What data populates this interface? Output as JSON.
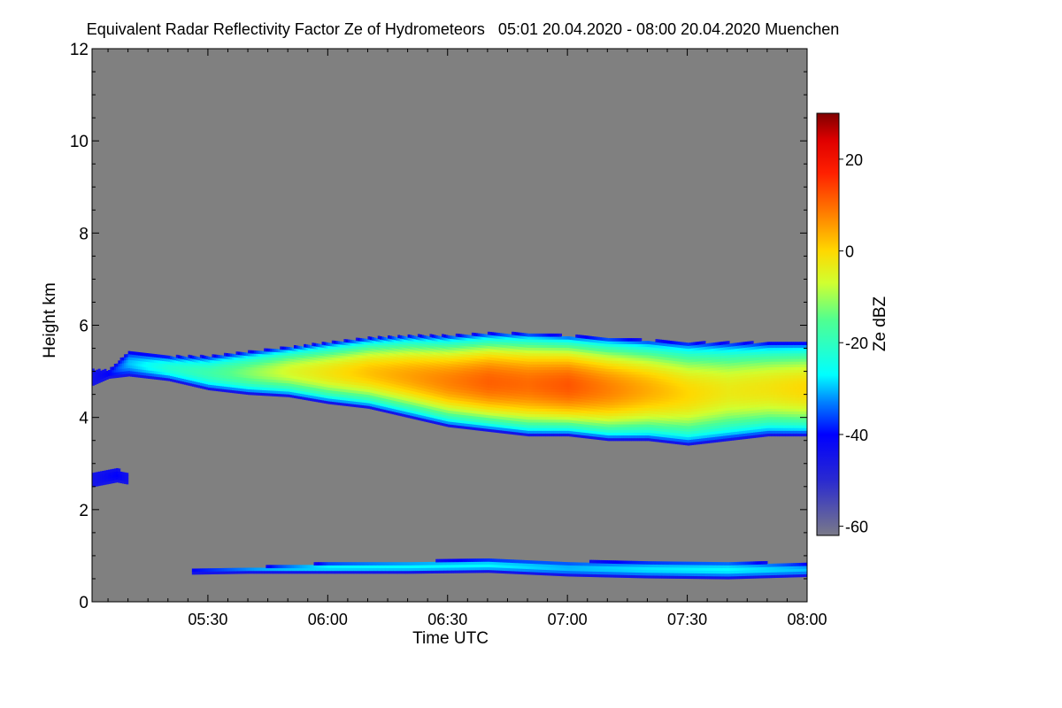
{
  "chart_data": {
    "type": "heatmap",
    "title": "Equivalent Radar Reflectivity Factor Ze of Hydrometeors   05:01 20.04.2020 - 08:00 20.04.2020 Muenchen",
    "xlabel": "Time UTC",
    "ylabel": "Height km",
    "xlim_minutes_utc": [
      301,
      480
    ],
    "ylim": [
      0,
      12
    ],
    "x_ticks": [
      {
        "minute": 330,
        "label": "05:30"
      },
      {
        "minute": 360,
        "label": "06:00"
      },
      {
        "minute": 390,
        "label": "06:30"
      },
      {
        "minute": 420,
        "label": "07:00"
      },
      {
        "minute": 450,
        "label": "07:30"
      },
      {
        "minute": 480,
        "label": "08:00"
      }
    ],
    "y_ticks": [
      {
        "value": 0,
        "label": "0"
      },
      {
        "value": 2,
        "label": "2"
      },
      {
        "value": 4,
        "label": "4"
      },
      {
        "value": 6,
        "label": "6"
      },
      {
        "value": 8,
        "label": "8"
      },
      {
        "value": 10,
        "label": "10"
      },
      {
        "value": 12,
        "label": "12"
      }
    ],
    "background_color": "#808080",
    "colorbar": {
      "label": "Ze dBZ",
      "range": [
        -62,
        30
      ],
      "ticks": [
        {
          "value": -60,
          "label": "-60"
        },
        {
          "value": -40,
          "label": "-40"
        },
        {
          "value": -20,
          "label": "-20"
        },
        {
          "value": 0,
          "label": "0"
        },
        {
          "value": 20,
          "label": "20"
        }
      ],
      "colormap": [
        {
          "v": -62,
          "color": "#7a7a88"
        },
        {
          "v": -50,
          "color": "#2a2ad0"
        },
        {
          "v": -40,
          "color": "#0000ff"
        },
        {
          "v": -33,
          "color": "#0080ff"
        },
        {
          "v": -27,
          "color": "#00ffff"
        },
        {
          "v": -15,
          "color": "#50ff90"
        },
        {
          "v": -7,
          "color": "#d0ff30"
        },
        {
          "v": 0,
          "color": "#ffd800"
        },
        {
          "v": 8,
          "color": "#ff8000"
        },
        {
          "v": 17,
          "color": "#ff2000"
        },
        {
          "v": 24,
          "color": "#e00000"
        },
        {
          "v": 30,
          "color": "#800000"
        }
      ]
    },
    "cloud_layers": [
      {
        "name": "main-precipitation-layer",
        "top": [
          [
            301,
            5.0
          ],
          [
            305,
            5.0
          ],
          [
            310,
            5.4
          ],
          [
            320,
            5.3
          ],
          [
            330,
            5.3
          ],
          [
            340,
            5.4
          ],
          [
            350,
            5.5
          ],
          [
            360,
            5.6
          ],
          [
            370,
            5.7
          ],
          [
            380,
            5.75
          ],
          [
            390,
            5.75
          ],
          [
            400,
            5.8
          ],
          [
            410,
            5.8
          ],
          [
            420,
            5.75
          ],
          [
            430,
            5.7
          ],
          [
            440,
            5.65
          ],
          [
            450,
            5.6
          ],
          [
            460,
            5.6
          ],
          [
            470,
            5.6
          ],
          [
            480,
            5.6
          ]
        ],
        "base": [
          [
            301,
            4.7
          ],
          [
            305,
            4.85
          ],
          [
            310,
            4.9
          ],
          [
            320,
            4.8
          ],
          [
            330,
            4.6
          ],
          [
            340,
            4.5
          ],
          [
            350,
            4.45
          ],
          [
            360,
            4.3
          ],
          [
            370,
            4.2
          ],
          [
            380,
            4.0
          ],
          [
            390,
            3.8
          ],
          [
            400,
            3.7
          ],
          [
            410,
            3.6
          ],
          [
            420,
            3.6
          ],
          [
            430,
            3.5
          ],
          [
            440,
            3.5
          ],
          [
            450,
            3.4
          ],
          [
            460,
            3.5
          ],
          [
            470,
            3.6
          ],
          [
            480,
            3.6
          ]
        ],
        "peak_dbz": [
          [
            301,
            -45
          ],
          [
            305,
            -40
          ],
          [
            310,
            -30
          ],
          [
            320,
            -22
          ],
          [
            330,
            -18
          ],
          [
            340,
            -12
          ],
          [
            350,
            -6
          ],
          [
            360,
            -2
          ],
          [
            370,
            2
          ],
          [
            380,
            5
          ],
          [
            390,
            8
          ],
          [
            400,
            11
          ],
          [
            410,
            10
          ],
          [
            420,
            12
          ],
          [
            430,
            8
          ],
          [
            440,
            4
          ],
          [
            450,
            0
          ],
          [
            460,
            -3
          ],
          [
            470,
            -2
          ],
          [
            480,
            0
          ]
        ]
      },
      {
        "name": "low-layer-2-7km",
        "top": [
          [
            301,
            2.8
          ],
          [
            307,
            2.85
          ],
          [
            310,
            2.75
          ]
        ],
        "base": [
          [
            301,
            2.5
          ],
          [
            307,
            2.6
          ],
          [
            310,
            2.55
          ]
        ],
        "peak_dbz": [
          [
            301,
            -45
          ],
          [
            307,
            -40
          ],
          [
            310,
            -45
          ]
        ]
      },
      {
        "name": "boundary-layer-band",
        "top": [
          [
            326,
            0.7
          ],
          [
            340,
            0.72
          ],
          [
            360,
            0.82
          ],
          [
            380,
            0.85
          ],
          [
            400,
            0.9
          ],
          [
            420,
            0.85
          ],
          [
            440,
            0.85
          ],
          [
            460,
            0.85
          ],
          [
            480,
            0.8
          ]
        ],
        "base": [
          [
            326,
            0.6
          ],
          [
            340,
            0.62
          ],
          [
            360,
            0.62
          ],
          [
            380,
            0.62
          ],
          [
            400,
            0.64
          ],
          [
            420,
            0.56
          ],
          [
            440,
            0.52
          ],
          [
            460,
            0.5
          ],
          [
            480,
            0.55
          ]
        ],
        "peak_dbz": [
          [
            326,
            -40
          ],
          [
            340,
            -32
          ],
          [
            360,
            -27
          ],
          [
            380,
            -27
          ],
          [
            400,
            -27
          ],
          [
            420,
            -30
          ],
          [
            440,
            -28
          ],
          [
            460,
            -27
          ],
          [
            480,
            -30
          ]
        ]
      }
    ]
  }
}
